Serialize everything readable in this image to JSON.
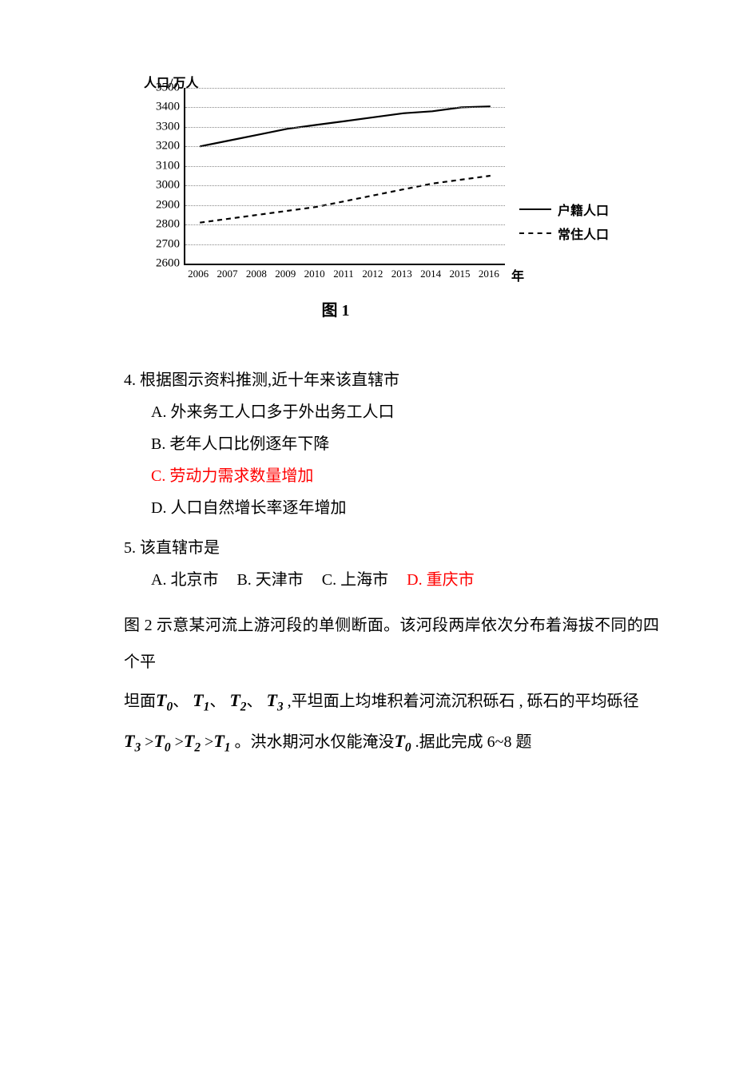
{
  "chart": {
    "type": "line",
    "y_title": "人口/万人",
    "x_unit": "年",
    "caption": "图 1",
    "ylim": [
      2600,
      3500
    ],
    "ytick_step": 100,
    "y_ticks": [
      2600,
      2700,
      2800,
      2900,
      3000,
      3100,
      3200,
      3300,
      3400,
      3500
    ],
    "x_categories": [
      "2006",
      "2007",
      "2008",
      "2009",
      "2010",
      "2011",
      "2012",
      "2013",
      "2014",
      "2015",
      "2016"
    ],
    "grid_color": "#888888",
    "axis_color": "#000000",
    "background_color": "#ffffff",
    "series": [
      {
        "name": "户籍人口",
        "style": "solid",
        "color": "#000000",
        "line_width": 2.2,
        "values": [
          3200,
          3230,
          3260,
          3290,
          3310,
          3330,
          3350,
          3370,
          3380,
          3400,
          3405
        ]
      },
      {
        "name": "常住人口",
        "style": "dashed",
        "color": "#000000",
        "line_width": 2.2,
        "values": [
          2810,
          2830,
          2850,
          2870,
          2890,
          2920,
          2950,
          2980,
          3010,
          3030,
          3050
        ]
      }
    ],
    "legend": {
      "items": [
        "户籍人口",
        "常住人口"
      ]
    }
  },
  "q4": {
    "stem": "4. 根据图示资料推测,近十年来该直辖市",
    "A": "A. 外来务工人口多于外出务工人口",
    "B": "B. 老年人口比例逐年下降",
    "C": "C. 劳动力需求数量增加",
    "D": "D. 人口自然增长率逐年增加"
  },
  "q5": {
    "stem": "5. 该直辖市是",
    "A": "A. 北京市",
    "B": "B. 天津市",
    "C": "C. 上海市",
    "D": "D. 重庆市"
  },
  "passage": {
    "p1a": "图 2 示意某河流上游河段的单侧断面。该河段两岸依次分布着海拔不同的四个平",
    "p1b_pre": "坦面",
    "t0": "T",
    "s0": "0",
    "sep1": "、",
    "t1": "T",
    "s1": "1",
    "sep2": "、",
    "t2": "T",
    "s2": "2",
    "sep3": "、",
    "t3": "T",
    "s3": "3",
    "p1b_post": " ,平坦面上均堆积着河流沉积砾石 , 砾石的平均砾径",
    "ord_t3": "T",
    "ord_s3": "3",
    "gt1": " >",
    "ord_t0": "T",
    "ord_s0": "0",
    "gt2": " >",
    "ord_t2": "T",
    "ord_s2": "2",
    "gt3": " >",
    "ord_t1": "T",
    "ord_s1": "1",
    "p2_mid": " 。洪水期河水仅能淹没",
    "flood_t": "T",
    "flood_s": "0",
    "p2_end": " .据此完成 6~8 题"
  }
}
